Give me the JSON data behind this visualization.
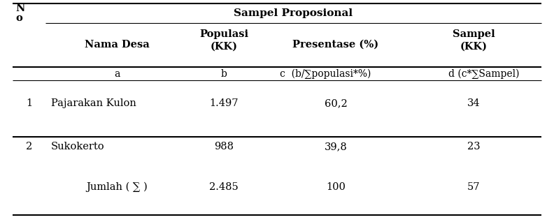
{
  "header_top": "Sampel Proposional",
  "subheader_row": [
    "a",
    "b",
    "c  (b/∑populasi*%)",
    "d (c*∑Sampel)"
  ],
  "rows": [
    [
      "1",
      "Pajarakan Kulon",
      "1.497",
      "60,2",
      "34"
    ],
    [
      "2",
      "Sukokerto",
      "988",
      "39,8",
      "23"
    ]
  ],
  "footer_row": [
    "Jumlah ( ∑ )",
    "2.485",
    "100",
    "57"
  ],
  "background_color": "#ffffff",
  "text_color": "#000000",
  "font_size": 10.5,
  "font_family": "DejaVu Serif"
}
